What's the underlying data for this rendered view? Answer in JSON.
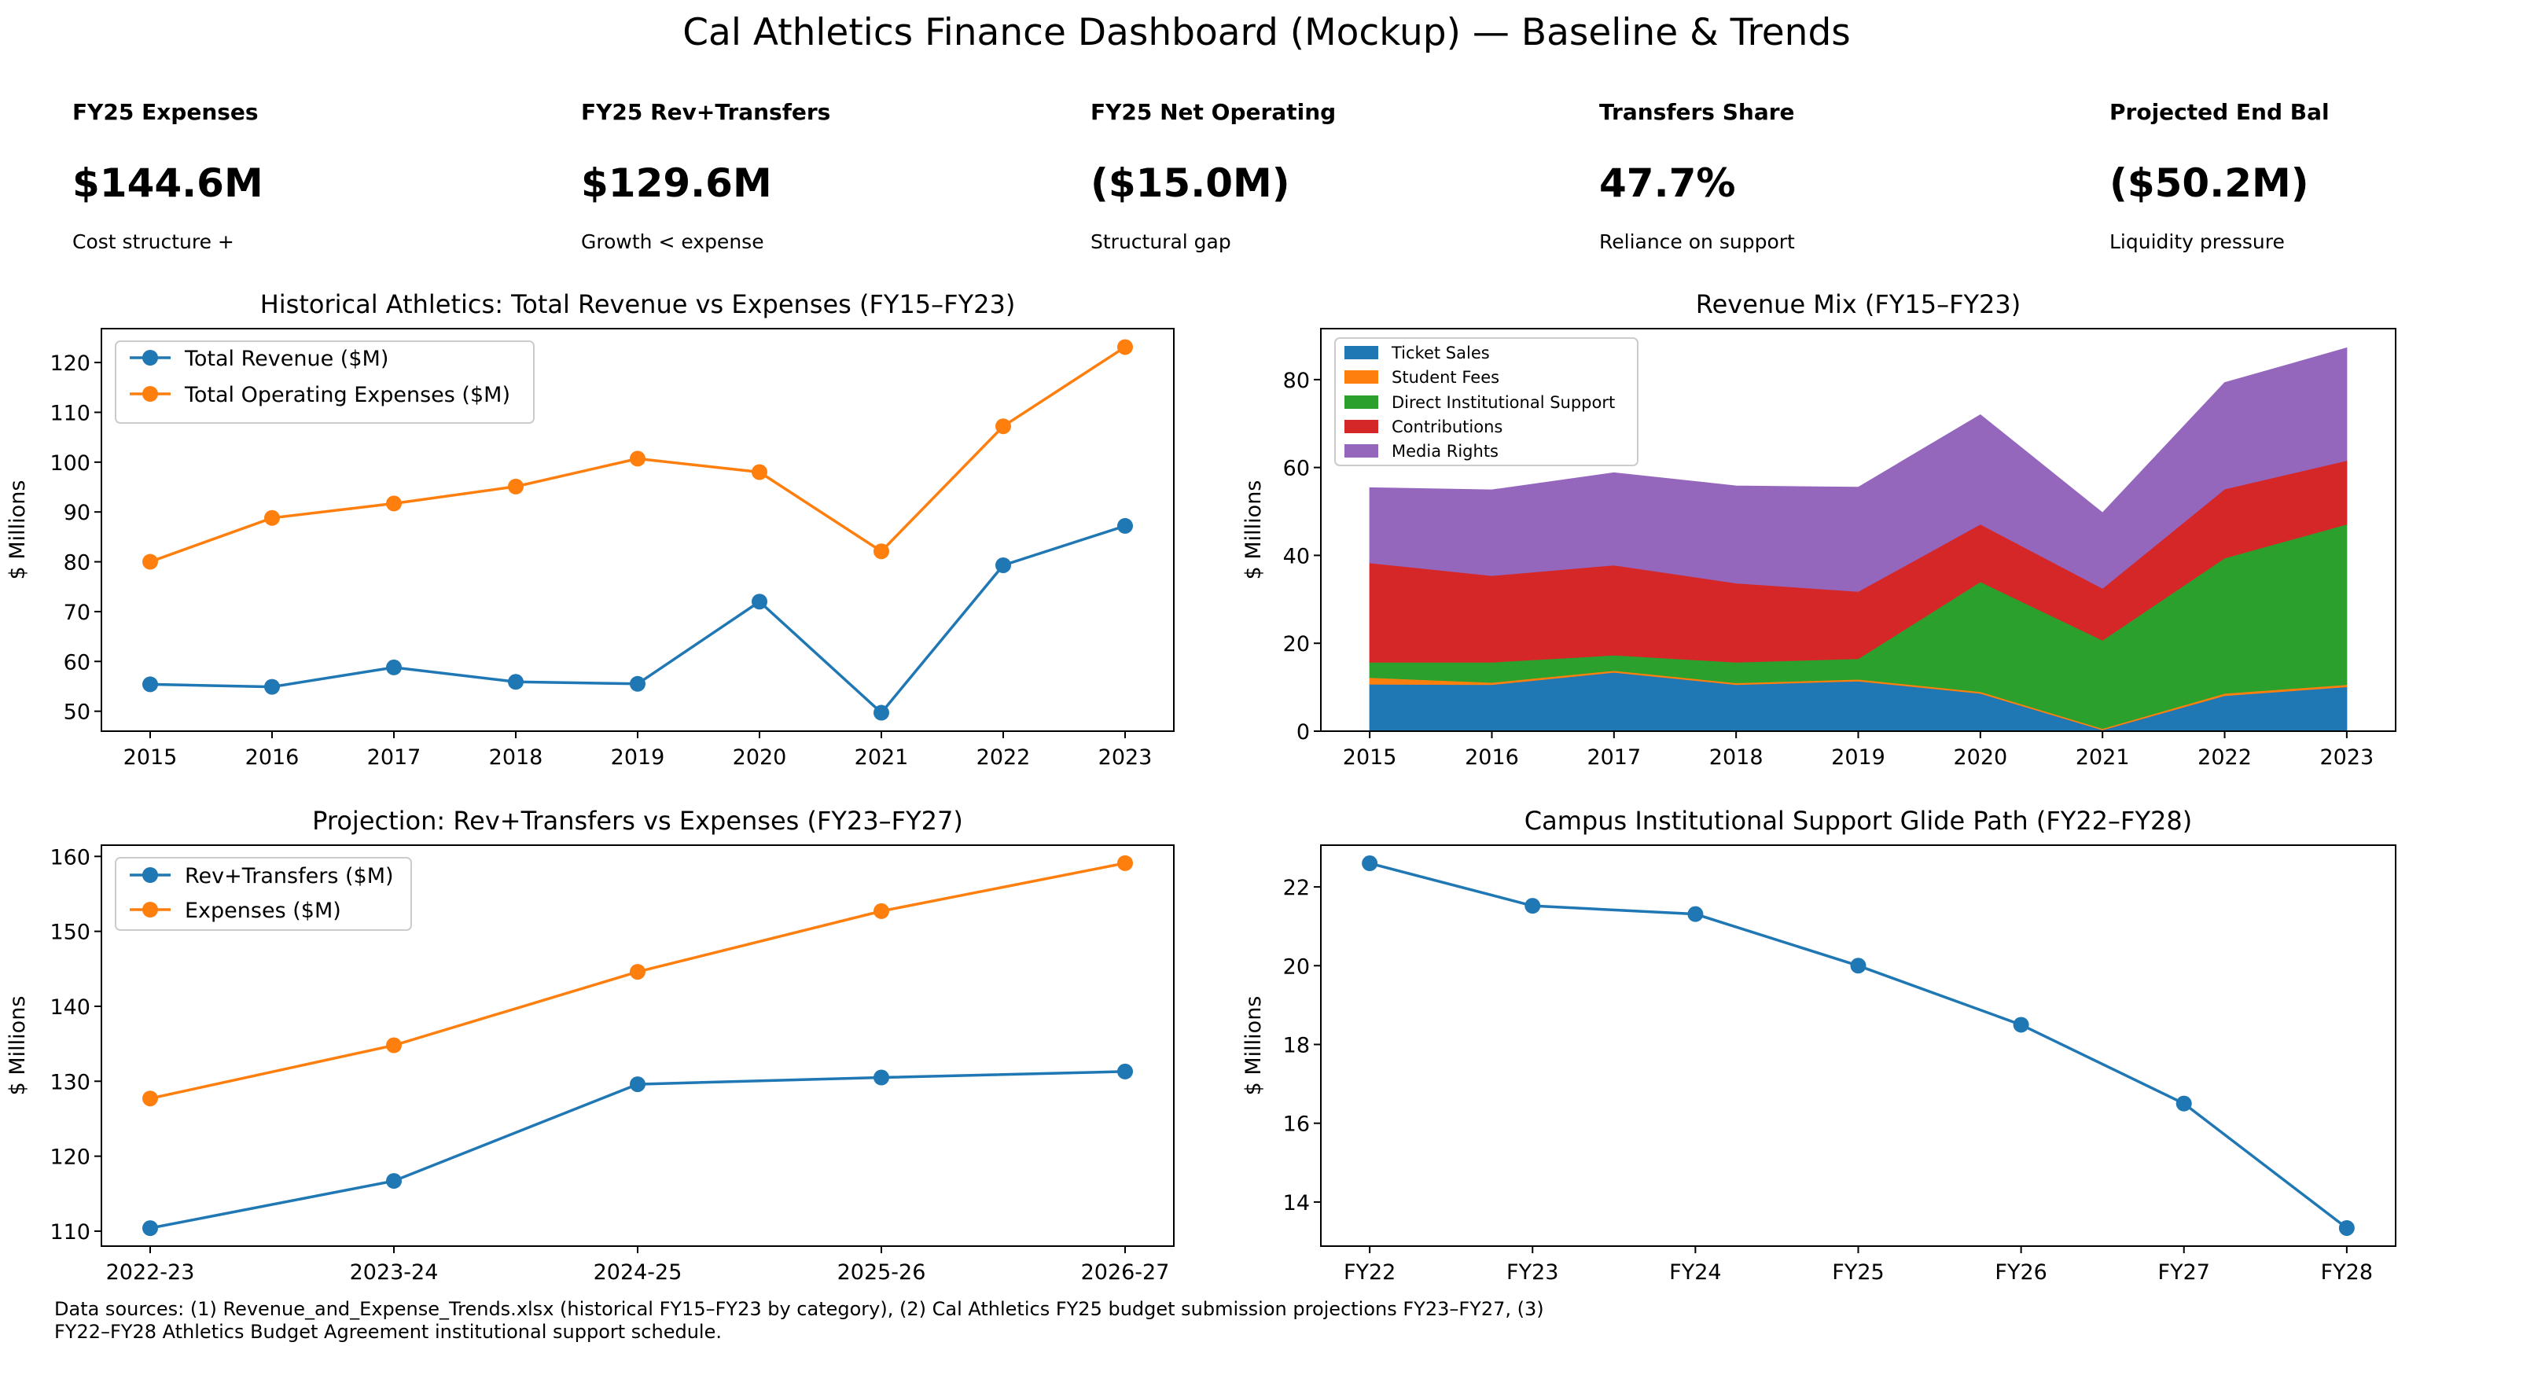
{
  "title": "Cal Athletics Finance Dashboard (Mockup) — Baseline & Trends",
  "kpis": [
    {
      "label": "FY25 Expenses",
      "value": "$144.6M",
      "note": "Cost structure +"
    },
    {
      "label": "FY25 Rev+Transfers",
      "value": "$129.6M",
      "note": "Growth < expense"
    },
    {
      "label": "FY25 Net Operating",
      "value": "($15.0M)",
      "note": "Structural gap"
    },
    {
      "label": "Transfers Share",
      "value": "47.7%",
      "note": "Reliance on support"
    },
    {
      "label": "Projected End Bal",
      "value": "($50.2M)",
      "note": "Liquidity pressure"
    }
  ],
  "footnote": [
    "Data sources: (1) Revenue_and_Expense_Trends.xlsx (historical FY15–FY23 by category), (2) Cal Athletics FY25 budget submission projections FY23–FY27, (3)",
    "FY22–FY28 Athletics Budget Agreement institutional support schedule."
  ],
  "chart_data": [
    {
      "type": "line",
      "title": "Historical Athletics: Total Revenue vs Expenses (FY15–FY23)",
      "ylabel": "$ Millions",
      "categories": [
        "2015",
        "2016",
        "2017",
        "2018",
        "2019",
        "2020",
        "2021",
        "2022",
        "2023"
      ],
      "ylim": [
        46.0,
        126.8
      ],
      "yticks": [
        50,
        60,
        70,
        80,
        90,
        100,
        110,
        120
      ],
      "grid": false,
      "legend": "upper-left",
      "series": [
        {
          "name": "Total Revenue ($M)",
          "color": "#1f77b4",
          "values": [
            55.4,
            54.9,
            58.8,
            55.9,
            55.5,
            72.0,
            49.7,
            79.3,
            87.2
          ]
        },
        {
          "name": "Total Operating Expenses ($M)",
          "color": "#ff7f0e",
          "values": [
            80.0,
            88.8,
            91.7,
            95.1,
            100.7,
            98.0,
            82.1,
            107.2,
            123.1
          ]
        }
      ]
    },
    {
      "type": "area",
      "stacked": true,
      "title": "Revenue Mix (FY15–FY23)",
      "ylabel": "$ Millions",
      "categories": [
        "2015",
        "2016",
        "2017",
        "2018",
        "2019",
        "2020",
        "2021",
        "2022",
        "2023"
      ],
      "ylim": [
        0,
        91.6
      ],
      "yticks": [
        0,
        20,
        40,
        60,
        80
      ],
      "grid": false,
      "legend": "upper-left",
      "series": [
        {
          "name": "Ticket Sales",
          "color": "#1f77b4",
          "values": [
            10.7,
            10.6,
            13.4,
            10.6,
            11.4,
            8.6,
            0.3,
            8.1,
            10.1
          ]
        },
        {
          "name": "Student Fees",
          "color": "#ff7f0e",
          "values": [
            1.5,
            0.5,
            0.4,
            0.4,
            0.4,
            0.4,
            0.3,
            0.5,
            0.5
          ]
        },
        {
          "name": "Direct Institutional Support",
          "color": "#2ca02c",
          "values": [
            3.5,
            4.6,
            3.5,
            4.7,
            4.7,
            25.0,
            20.1,
            30.8,
            36.5
          ]
        },
        {
          "name": "Contributions",
          "color": "#d62728",
          "values": [
            22.6,
            19.7,
            20.5,
            18.0,
            15.3,
            13.1,
            11.8,
            15.7,
            14.5
          ]
        },
        {
          "name": "Media Rights",
          "color": "#9467bd",
          "values": [
            17.1,
            19.5,
            21.0,
            22.1,
            23.7,
            24.9,
            17.2,
            24.2,
            25.6
          ]
        }
      ]
    },
    {
      "type": "line",
      "title": "Projection: Rev+Transfers vs Expenses (FY23–FY27)",
      "ylabel": "$ Millions",
      "categories": [
        "2022-23",
        "2023-24",
        "2024-25",
        "2025-26",
        "2026-27"
      ],
      "ylim": [
        108.0,
        161.5
      ],
      "yticks": [
        110,
        120,
        130,
        140,
        150,
        160
      ],
      "grid": false,
      "legend": "upper-left",
      "series": [
        {
          "name": "Rev+Transfers ($M)",
          "color": "#1f77b4",
          "values": [
            110.4,
            116.7,
            129.6,
            130.5,
            131.3
          ]
        },
        {
          "name": "Expenses ($M)",
          "color": "#ff7f0e",
          "values": [
            127.7,
            134.8,
            144.6,
            152.7,
            159.1
          ]
        }
      ]
    },
    {
      "type": "line",
      "title": "Campus Institutional Support Glide Path (FY22–FY28)",
      "ylabel": "$ Millions",
      "categories": [
        "FY22",
        "FY23",
        "FY24",
        "FY25",
        "FY26",
        "FY27",
        "FY28"
      ],
      "ylim": [
        12.88,
        23.06
      ],
      "yticks": [
        14,
        16,
        18,
        20,
        22
      ],
      "grid": false,
      "legend": "none",
      "series": [
        {
          "color": "#1f77b4",
          "values": [
            22.6,
            21.52,
            21.31,
            20.0,
            18.5,
            16.5,
            13.34
          ]
        }
      ]
    }
  ]
}
